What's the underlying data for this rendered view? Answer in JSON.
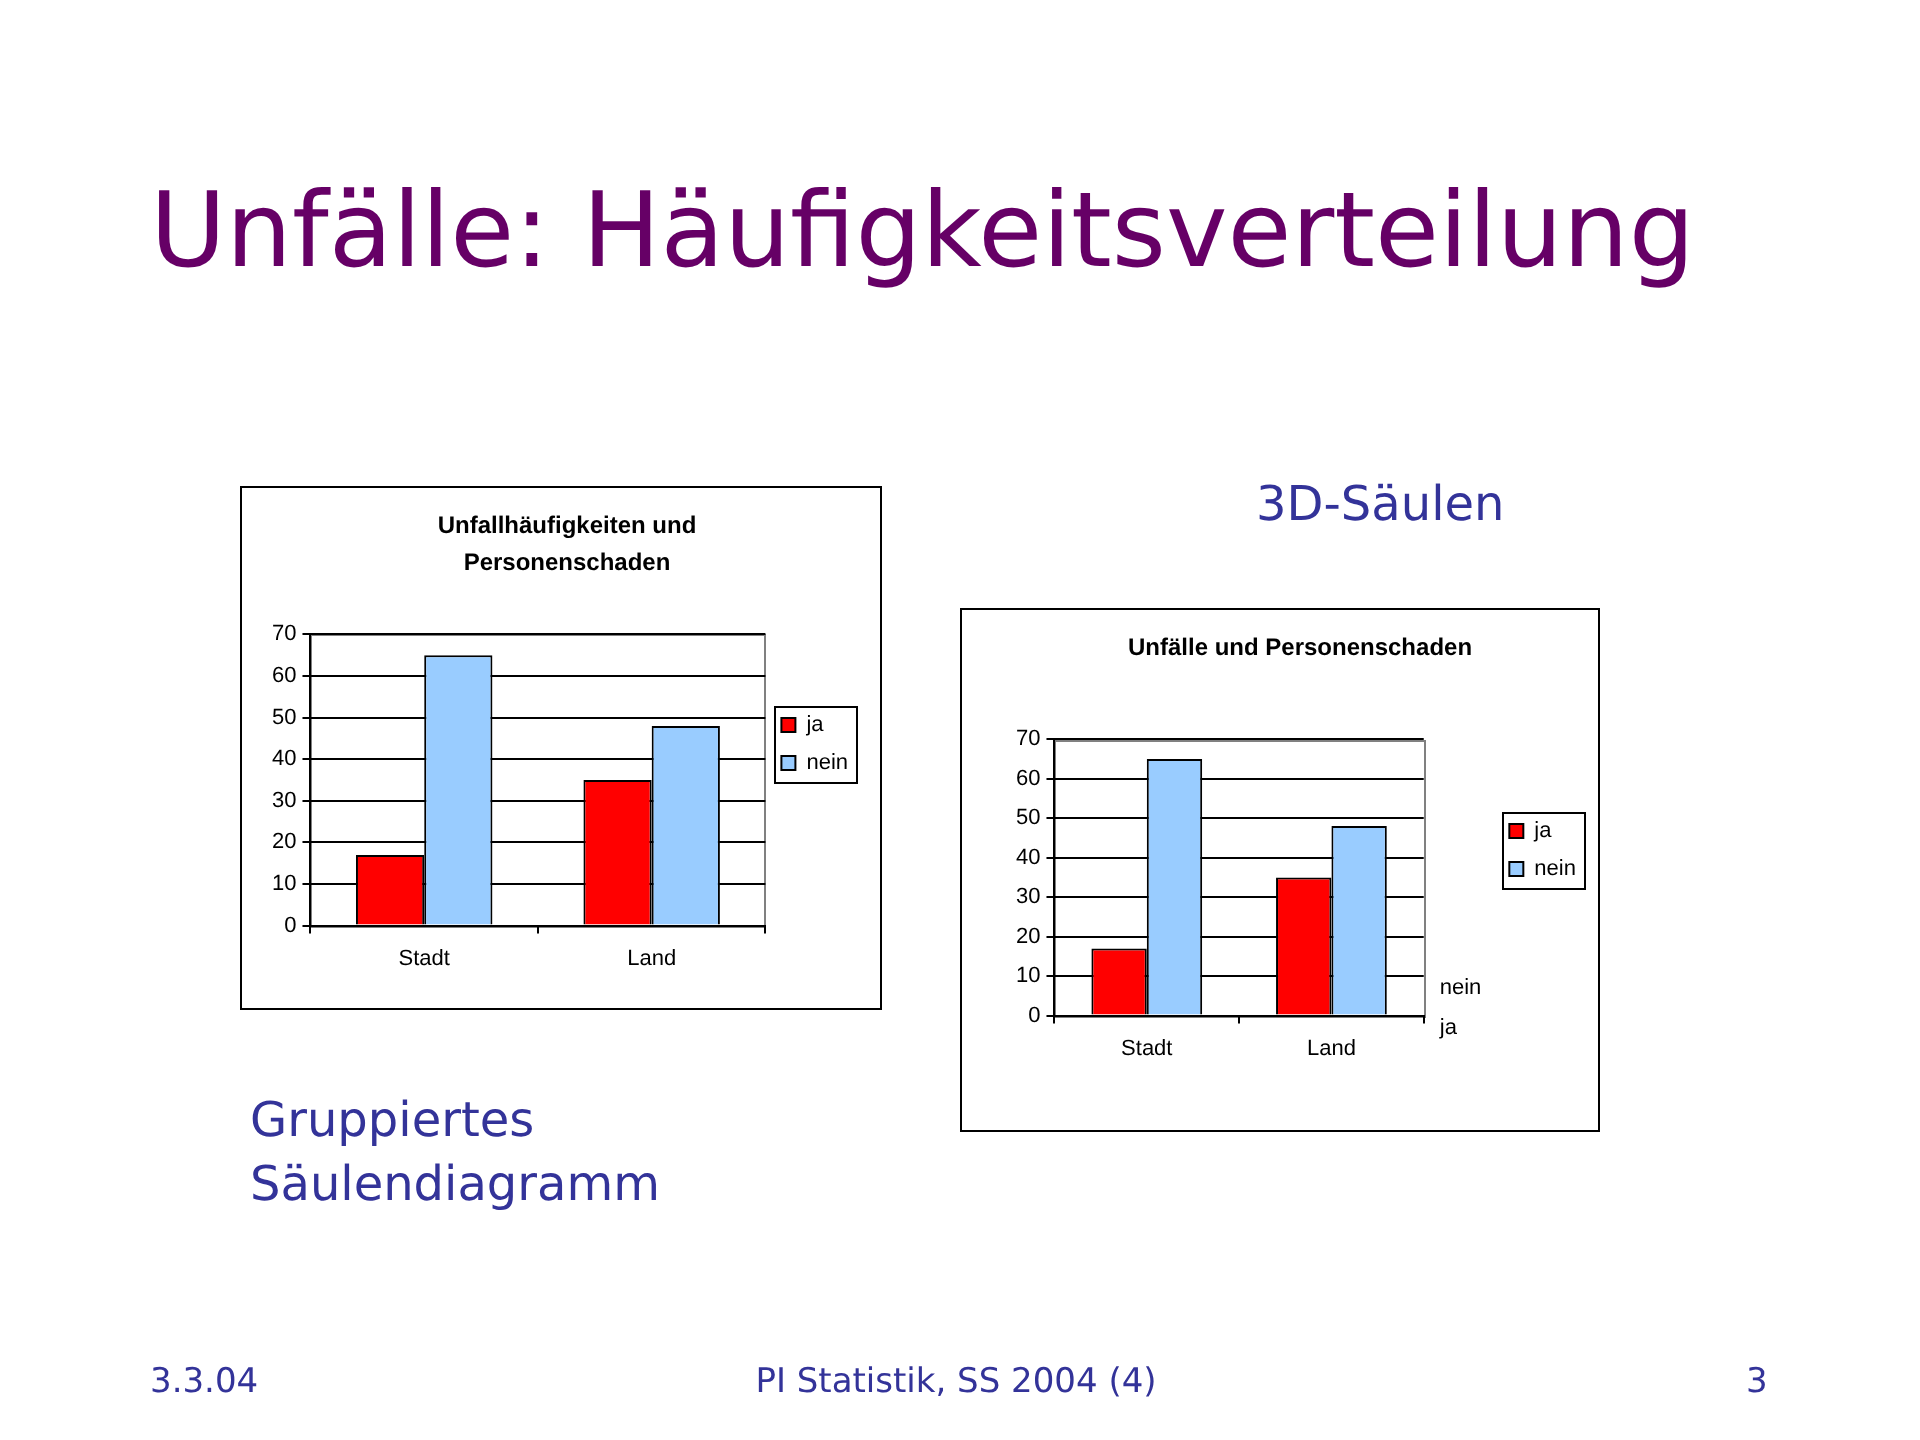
{
  "chart_data": [
    {
      "type": "bar",
      "title": "Unfallhäufigkeiten und Personenschaden",
      "categories": [
        "Stadt",
        "Land"
      ],
      "series": [
        {
          "name": "ja",
          "color": "#ff0000",
          "values": [
            17,
            35
          ]
        },
        {
          "name": "nein",
          "color": "#99ccff",
          "values": [
            65,
            48
          ]
        }
      ],
      "ylim": [
        0,
        70
      ],
      "yticks": [
        0,
        10,
        20,
        30,
        40,
        50,
        60,
        70
      ],
      "grid": "y",
      "legend": "right",
      "annotations": [
        "Unfälle: Häufigkeitsverteilung",
        "Gruppiertes Säulendiagramm",
        "3.3.04",
        "PI Statistik, SS 2004 (4)",
        "3"
      ]
    },
    {
      "type": "bar",
      "title": "Unfälle und Personenschaden",
      "categories": [
        "Stadt",
        "Land"
      ],
      "series": [
        {
          "name": "ja",
          "color": "#ff0000",
          "values": [
            17,
            35
          ]
        },
        {
          "name": "nein",
          "color": "#99ccff",
          "values": [
            65,
            48
          ]
        }
      ],
      "ylim": [
        0,
        70
      ],
      "yticks": [
        0,
        10,
        20,
        30,
        40,
        50,
        60,
        70
      ],
      "grid": "y",
      "legend": "right",
      "annotations": [
        "3D-Säulen",
        "nein",
        "ja"
      ]
    }
  ]
}
